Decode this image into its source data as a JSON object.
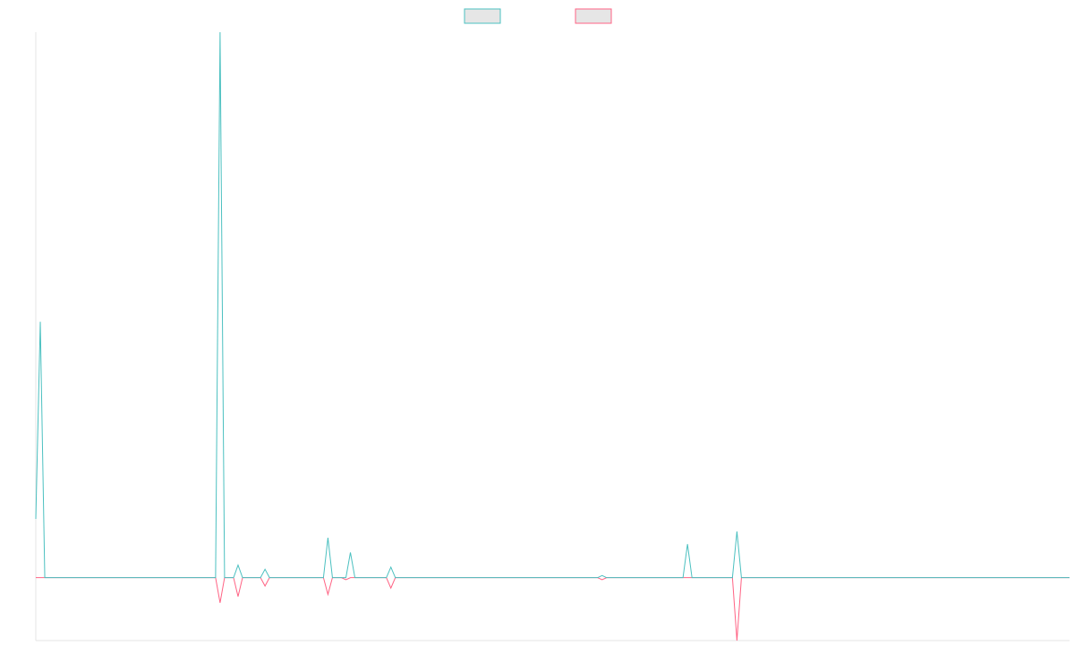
{
  "chart_data": {
    "type": "line",
    "title": "",
    "xlabel": "",
    "ylabel": "",
    "grid": false,
    "legend_placement": "top-center",
    "point_count": 231,
    "ylim": [
      -1.5,
      13
    ],
    "series": [
      {
        "name": "",
        "color": "#4bc0c0",
        "legend_fill": "#e6e6e6",
        "points": [
          {
            "x": 0,
            "y": 1.4
          },
          {
            "x": 1,
            "y": 6.1
          },
          {
            "x": 2,
            "y": 0
          },
          {
            "x": 40,
            "y": 0
          },
          {
            "x": 41,
            "y": 13
          },
          {
            "x": 42,
            "y": 0
          },
          {
            "x": 44,
            "y": 0
          },
          {
            "x": 45,
            "y": 0.3
          },
          {
            "x": 46,
            "y": 0
          },
          {
            "x": 50,
            "y": 0
          },
          {
            "x": 51,
            "y": 0.2
          },
          {
            "x": 52,
            "y": 0
          },
          {
            "x": 64,
            "y": 0
          },
          {
            "x": 65,
            "y": 0.95
          },
          {
            "x": 66,
            "y": 0
          },
          {
            "x": 69,
            "y": 0
          },
          {
            "x": 70,
            "y": 0.6
          },
          {
            "x": 71,
            "y": 0
          },
          {
            "x": 78,
            "y": 0
          },
          {
            "x": 79,
            "y": 0.25
          },
          {
            "x": 80,
            "y": 0
          },
          {
            "x": 125,
            "y": 0
          },
          {
            "x": 126,
            "y": 0.05
          },
          {
            "x": 127,
            "y": 0
          },
          {
            "x": 144,
            "y": 0
          },
          {
            "x": 145,
            "y": 0.8
          },
          {
            "x": 146,
            "y": 0
          },
          {
            "x": 155,
            "y": 0
          },
          {
            "x": 156,
            "y": 1.1
          },
          {
            "x": 157,
            "y": 0
          },
          {
            "x": 230,
            "y": 0
          }
        ]
      },
      {
        "name": "",
        "color": "#ff6384",
        "legend_fill": "#e6e6e6",
        "points": [
          {
            "x": 0,
            "y": 0
          },
          {
            "x": 40,
            "y": 0
          },
          {
            "x": 41,
            "y": -0.6
          },
          {
            "x": 42,
            "y": 0
          },
          {
            "x": 44,
            "y": 0
          },
          {
            "x": 45,
            "y": -0.45
          },
          {
            "x": 46,
            "y": 0
          },
          {
            "x": 50,
            "y": 0
          },
          {
            "x": 51,
            "y": -0.2
          },
          {
            "x": 52,
            "y": 0
          },
          {
            "x": 64,
            "y": 0
          },
          {
            "x": 65,
            "y": -0.4
          },
          {
            "x": 66,
            "y": 0
          },
          {
            "x": 68,
            "y": 0
          },
          {
            "x": 69,
            "y": -0.05
          },
          {
            "x": 70,
            "y": 0
          },
          {
            "x": 78,
            "y": 0
          },
          {
            "x": 79,
            "y": -0.25
          },
          {
            "x": 80,
            "y": 0
          },
          {
            "x": 125,
            "y": 0
          },
          {
            "x": 126,
            "y": -0.05
          },
          {
            "x": 127,
            "y": 0
          },
          {
            "x": 155,
            "y": 0
          },
          {
            "x": 156,
            "y": -1.5
          },
          {
            "x": 157,
            "y": 0
          },
          {
            "x": 230,
            "y": 0
          }
        ]
      }
    ]
  }
}
